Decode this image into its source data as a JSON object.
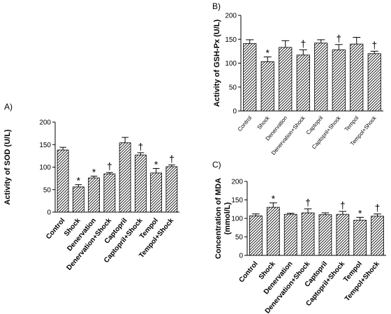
{
  "chart_data": [
    {
      "panel": "A)",
      "type": "bar",
      "ylabel": "Activity of SOD (U/L)",
      "ylim": [
        0,
        200
      ],
      "yticks": [
        0,
        50,
        100,
        150,
        200
      ],
      "categories": [
        "Control",
        "Shock",
        "Denervation",
        "Denervation+Shock",
        "Captopril",
        "Captopril+Shock",
        "Tempol",
        "Tempol+Shock"
      ],
      "values": [
        138,
        56,
        76,
        85,
        154,
        127,
        87,
        101
      ],
      "errors": [
        6,
        5,
        4,
        3,
        12,
        5,
        10,
        4
      ],
      "markers": [
        "",
        "*",
        "*",
        "†",
        "",
        "†",
        "*",
        "†"
      ]
    },
    {
      "panel": "B)",
      "type": "bar",
      "ylabel": "Activity of GSH-Px (U/L)",
      "ylim": [
        0,
        200
      ],
      "yticks": [
        0,
        50,
        100,
        150,
        200
      ],
      "categories": [
        "Control",
        "Shock",
        "Denervation",
        "Denervation+Shock",
        "Captopril",
        "Captopril+Shock",
        "Tempol",
        "Tempol+Shock"
      ],
      "values": [
        141,
        103,
        133,
        117,
        142,
        128,
        140,
        120
      ],
      "errors": [
        8,
        10,
        14,
        11,
        7,
        11,
        14,
        5
      ],
      "markers": [
        "",
        "*",
        "",
        "†",
        "",
        "†",
        "",
        "†"
      ]
    },
    {
      "panel": "C)",
      "type": "bar",
      "ylabel": "Concentration of MDA (mmol/L)",
      "ylabel_lines": [
        "Concentration of MDA",
        "(mmol/L)"
      ],
      "ylim": [
        0,
        200
      ],
      "yticks": [
        0,
        50,
        100,
        150,
        200
      ],
      "categories": [
        "Control",
        "Shock",
        "Denervation",
        "Denervation+Shock",
        "Captopril",
        "Captopril+Shock",
        "Tempol",
        "Tempol+Shock"
      ],
      "values": [
        107,
        130,
        111,
        115,
        110,
        111,
        95,
        106
      ],
      "errors": [
        5,
        12,
        3,
        11,
        5,
        8,
        8,
        6
      ],
      "markers": [
        "",
        "*",
        "",
        "†",
        "",
        "†",
        "*",
        "†"
      ]
    }
  ]
}
